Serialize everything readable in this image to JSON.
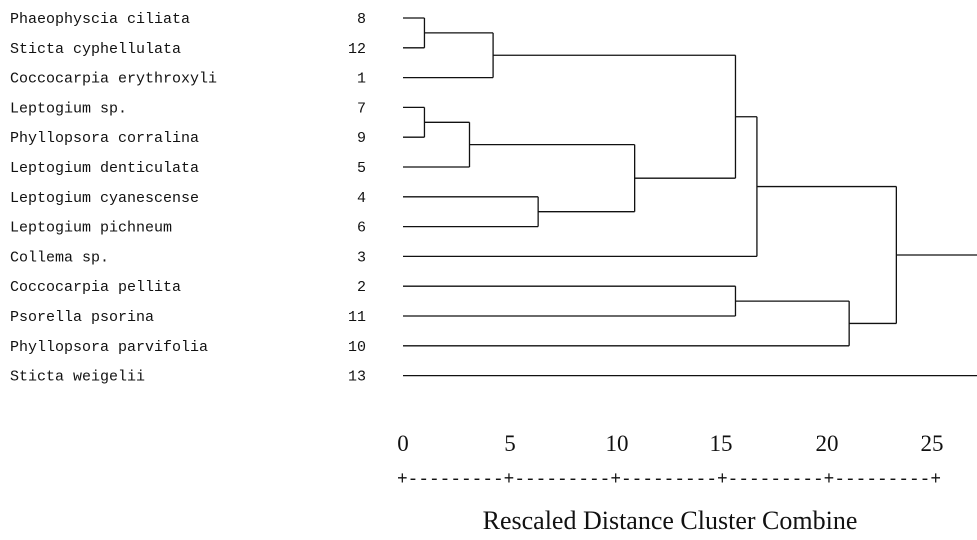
{
  "leaves": [
    {
      "name": "Phaeophyscia ciliata",
      "id": "8"
    },
    {
      "name": "Sticta cyphellulata",
      "id": "12"
    },
    {
      "name": "Coccocarpia erythroxyli",
      "id": "1"
    },
    {
      "name": "Leptogium sp.",
      "id": "7"
    },
    {
      "name": "Phyllopsora corralina",
      "id": "9"
    },
    {
      "name": "Leptogium denticulata",
      "id": "5"
    },
    {
      "name": "Leptogium cyanescense",
      "id": "4"
    },
    {
      "name": "Leptogium pichneum",
      "id": "6"
    },
    {
      "name": "Collema sp.",
      "id": "3"
    },
    {
      "name": "Coccocarpia pellita",
      "id": "2"
    },
    {
      "name": "Psorella psorina",
      "id": "11"
    },
    {
      "name": "Phyllopsora parvifolia",
      "id": "10"
    },
    {
      "name": "Sticta weigelii",
      "id": "13"
    }
  ],
  "axis": {
    "ticks": [
      "0",
      "5",
      "10",
      "15",
      "20",
      "25"
    ],
    "scale_line": "+---------+---------+---------+---------+---------+",
    "title": "Rescaled Distance Cluster Combine",
    "range": [
      0,
      25
    ]
  },
  "merges": [
    {
      "a": "L0",
      "b": "L1",
      "distance": 1.0
    },
    {
      "a": "M0",
      "b": "L2",
      "distance": 4.2
    },
    {
      "a": "L3",
      "b": "L4",
      "distance": 1.0
    },
    {
      "a": "M2",
      "b": "L5",
      "distance": 3.1
    },
    {
      "a": "L6",
      "b": "L7",
      "distance": 6.3
    },
    {
      "a": "M3",
      "b": "M4",
      "distance": 10.8
    },
    {
      "a": "M1",
      "b": "M5",
      "distance": 15.5
    },
    {
      "a": "M6",
      "b": "L8",
      "distance": 16.5
    },
    {
      "a": "L9",
      "b": "L10",
      "distance": 15.5
    },
    {
      "a": "M8",
      "b": "L11",
      "distance": 20.8
    },
    {
      "a": "M7",
      "b": "M9",
      "distance": 23.0
    },
    {
      "a": "M10",
      "b": "L12",
      "distance": 27.0
    }
  ]
}
